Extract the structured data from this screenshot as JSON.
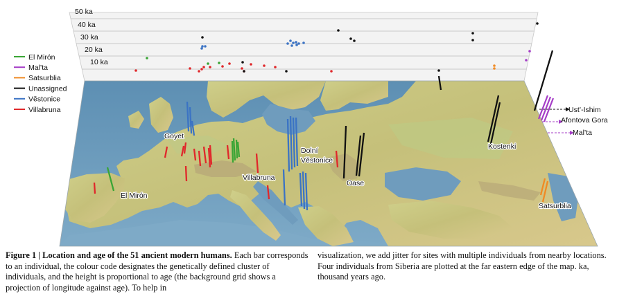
{
  "chart_data": {
    "type": "scatter",
    "age_axis": {
      "unit": "ka",
      "ticks": [
        "10 ka",
        "20 ka",
        "30 ka",
        "40 ka",
        "50 ka"
      ]
    },
    "legend": [
      {
        "name": "El Mirón",
        "color": "#3aa535"
      },
      {
        "name": "Mal’ta",
        "color": "#a53ec7"
      },
      {
        "name": "Satsurblia",
        "color": "#f08a24"
      },
      {
        "name": "Unassigned",
        "color": "#111111"
      },
      {
        "name": "Věstonice",
        "color": "#3b73c4"
      },
      {
        "name": "Villabruna",
        "color": "#e0282b"
      }
    ],
    "site_labels": {
      "goyet": "Goyet",
      "el_miron": "El Mirón",
      "villabruna": "Villabruna",
      "dolni": "Dolní",
      "vestonice": "Věstonice",
      "oase": "Oase",
      "kostenki": "Kostenki",
      "satsurblia": "Satsurblia",
      "ust_ishim": "Ust’-Ishim",
      "afontova": "Afontova Gora",
      "malta": "Mal’ta"
    }
  },
  "caption": {
    "bold": "Figure 1 | Location and age of the 51 ancient modern humans.",
    "left_text": " Each bar corresponds to an individual, the colour code designates the genetically defined cluster of individuals, and the height is proportional to age (the background grid shows a projection of longitude against age). To help in",
    "right_text": "visualization, we add jitter for sites with multiple individuals from nearby locations. Four individuals from Siberia are plotted at the far eastern edge of the map. ka, thousand years ago."
  }
}
